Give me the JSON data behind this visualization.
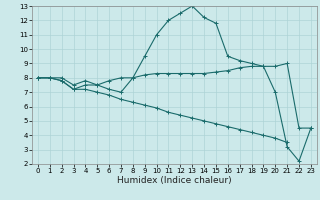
{
  "title": "",
  "xlabel": "Humidex (Indice chaleur)",
  "background_color": "#cce9ea",
  "grid_color": "#aed4d6",
  "line_color": "#1a6b6b",
  "xlim": [
    -0.5,
    23.5
  ],
  "ylim": [
    2,
    13
  ],
  "xticks": [
    0,
    1,
    2,
    3,
    4,
    5,
    6,
    7,
    8,
    9,
    10,
    11,
    12,
    13,
    14,
    15,
    16,
    17,
    18,
    19,
    20,
    21,
    22,
    23
  ],
  "yticks": [
    2,
    3,
    4,
    5,
    6,
    7,
    8,
    9,
    10,
    11,
    12,
    13
  ],
  "series": [
    {
      "x": [
        0,
        1,
        2,
        3,
        4,
        5,
        6,
        7,
        8,
        9,
        10,
        11,
        12,
        13,
        14,
        15,
        16,
        17,
        18,
        19,
        20,
        21,
        22,
        23
      ],
      "y": [
        8,
        8,
        8,
        7.5,
        7.8,
        7.5,
        7.2,
        7.0,
        8.0,
        9.5,
        11.0,
        12.0,
        12.5,
        13.0,
        12.2,
        11.8,
        9.5,
        9.2,
        9.0,
        8.8,
        7.0,
        3.2,
        2.2,
        4.5
      ]
    },
    {
      "x": [
        0,
        1,
        2,
        3,
        4,
        5,
        6,
        7,
        8,
        9,
        10,
        11,
        12,
        13,
        14,
        15,
        16,
        17,
        18,
        19,
        20,
        21,
        22,
        23
      ],
      "y": [
        8,
        8,
        7.8,
        7.2,
        7.5,
        7.5,
        7.8,
        8.0,
        8.0,
        8.2,
        8.3,
        8.3,
        8.3,
        8.3,
        8.3,
        8.4,
        8.5,
        8.7,
        8.8,
        8.8,
        8.8,
        9.0,
        4.5,
        4.5
      ]
    },
    {
      "x": [
        0,
        1,
        2,
        3,
        4,
        5,
        6,
        7,
        8,
        9,
        10,
        11,
        12,
        13,
        14,
        15,
        16,
        17,
        18,
        19,
        20,
        21
      ],
      "y": [
        8.0,
        8.0,
        7.8,
        7.2,
        7.2,
        7.0,
        6.8,
        6.5,
        6.3,
        6.1,
        5.9,
        5.6,
        5.4,
        5.2,
        5.0,
        4.8,
        4.6,
        4.4,
        4.2,
        4.0,
        3.8,
        3.5
      ]
    }
  ]
}
